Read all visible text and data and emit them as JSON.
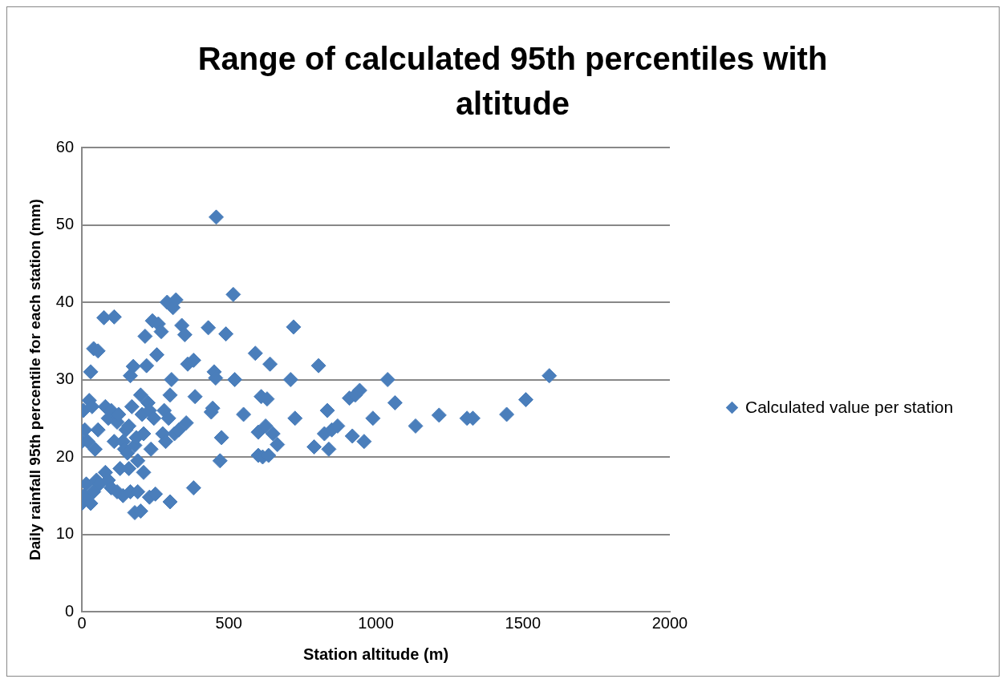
{
  "chart_data": {
    "type": "scatter",
    "title": "Range of calculated 95th percentiles with altitude",
    "xlabel": "Station altitude (m)",
    "ylabel": "Daily rainfall 95th percentile for each station (mm)",
    "xlim": [
      0,
      2000
    ],
    "xticks": [
      0,
      500,
      1000,
      1500,
      2000
    ],
    "ylim": [
      0,
      60
    ],
    "yticks": [
      0,
      10,
      20,
      30,
      40,
      50,
      60
    ],
    "grid": "y",
    "legend": "right",
    "marker": "diamond",
    "series": [
      {
        "name": "Calculated value per station",
        "color": "#4a7ebb",
        "x": [
          0,
          8,
          15,
          30,
          40,
          50,
          60,
          80,
          90,
          100,
          120,
          140,
          160,
          165,
          180,
          190,
          200,
          210,
          230,
          250,
          300,
          380,
          0,
          5,
          10,
          20,
          25,
          30,
          35,
          40,
          45,
          55,
          55,
          75,
          80,
          90,
          100,
          110,
          110,
          120,
          125,
          130,
          140,
          145,
          150,
          155,
          160,
          165,
          170,
          175,
          180,
          185,
          190,
          200,
          205,
          210,
          215,
          220,
          225,
          230,
          235,
          240,
          245,
          255,
          260,
          270,
          275,
          280,
          285,
          290,
          295,
          300,
          305,
          310,
          315,
          320,
          330,
          340,
          350,
          355,
          360,
          380,
          385,
          430,
          440,
          445,
          450,
          455,
          457,
          470,
          475,
          490,
          515,
          520,
          550,
          590,
          600,
          600,
          610,
          615,
          625,
          630,
          635,
          640,
          650,
          665,
          710,
          720,
          725,
          790,
          805,
          825,
          835,
          840,
          850,
          870,
          910,
          920,
          930,
          945,
          960,
          990,
          1040,
          1065,
          1135,
          1215,
          1310,
          1330,
          1445,
          1510,
          1590
        ],
        "values": [
          14,
          15,
          16.5,
          14,
          15.5,
          17,
          16.5,
          18,
          17,
          16,
          15.5,
          15,
          18.5,
          15.5,
          12.8,
          15.5,
          13,
          18,
          14.8,
          15.2,
          14.2,
          16,
          22,
          26,
          23.5,
          22,
          27.3,
          31,
          26.5,
          34,
          21,
          33.7,
          23.5,
          38,
          26.5,
          25,
          26,
          38.1,
          22,
          24.5,
          25.5,
          18.5,
          22,
          21,
          23.5,
          20.5,
          24,
          30.5,
          26.5,
          31.7,
          21.5,
          22.5,
          19.5,
          28,
          25.5,
          23,
          35.6,
          31.8,
          27,
          26,
          21,
          37.6,
          25,
          33.2,
          37.2,
          36.2,
          23,
          26,
          22,
          40,
          25,
          28,
          30,
          39.3,
          23,
          40.3,
          23.5,
          37,
          35.8,
          24.4,
          32,
          32.5,
          27.8,
          36.7,
          25.8,
          26.3,
          31,
          30.2,
          51,
          19.5,
          22.5,
          35.9,
          41,
          30,
          25.5,
          33.4,
          23.2,
          20.2,
          27.8,
          20,
          24,
          27.5,
          20.2,
          32,
          23,
          21.6,
          30,
          36.8,
          25,
          21.3,
          31.8,
          23,
          26,
          21,
          23.5,
          24,
          27.6,
          22.7,
          28,
          28.6,
          22,
          25,
          30,
          27,
          24,
          25.4,
          25,
          25,
          25.5,
          27.4,
          30.5
        ]
      }
    ]
  }
}
